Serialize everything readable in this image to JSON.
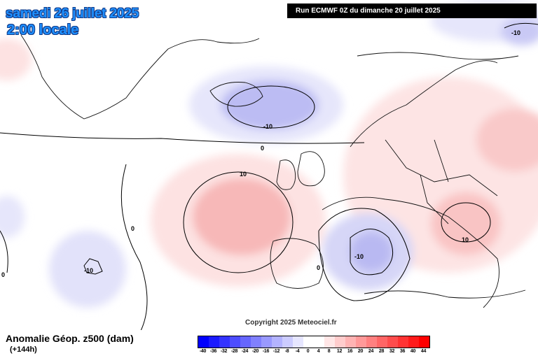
{
  "header": {
    "date": "samedi 26 juillet 2025",
    "time": "2:00 locale"
  },
  "run_info": "Run ECMWF 0Z du dimanche 20 juillet 2025",
  "copyright": "Copyright 2025 Meteociel.fr",
  "field": {
    "title": "Anomalie Géop. z500 (dam)",
    "lead_time": "(+144h)"
  },
  "contour_labels": {
    "iceland_low": "-10",
    "greenland_zero": "0",
    "atlantic_high": "10",
    "midatlantic_zero": "0",
    "azores_low": "-10",
    "west_zero": "0",
    "sardinia_low": "-10",
    "iberia_zero": "0",
    "balkans_high": "10",
    "russia_low": "-10"
  },
  "legend": {
    "labels": [
      "-40",
      "-36",
      "-32",
      "-28",
      "-24",
      "-20",
      "-16",
      "-12",
      "-8",
      "-4",
      "0",
      "4",
      "8",
      "12",
      "16",
      "20",
      "24",
      "28",
      "32",
      "36",
      "40",
      "44"
    ],
    "colors": [
      "#0000ff",
      "#1a1aff",
      "#3333ff",
      "#4d4dff",
      "#6666ff",
      "#8080ff",
      "#9999ff",
      "#b3b3ff",
      "#ccccff",
      "#e6e6ff",
      "#ffffff",
      "#ffffff",
      "#ffe6e6",
      "#ffcccc",
      "#ffb3b3",
      "#ff9999",
      "#ff8080",
      "#ff6666",
      "#ff4d4d",
      "#ff3333",
      "#ff1a1a",
      "#ff0000"
    ]
  }
}
